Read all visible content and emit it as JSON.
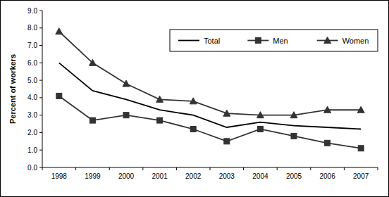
{
  "chart_data": {
    "type": "line",
    "y_label": "Percent of workers",
    "categories": [
      "1998",
      "1999",
      "2000",
      "2001",
      "2002",
      "2003",
      "2004",
      "2005",
      "2006",
      "2007"
    ],
    "series": [
      {
        "name": "Total",
        "color": "#000000",
        "marker": "none",
        "line_style": "solid",
        "values": [
          6.0,
          4.4,
          3.9,
          3.3,
          3.0,
          2.3,
          2.6,
          2.4,
          2.3,
          2.2
        ]
      },
      {
        "name": "Men",
        "color": "#333333",
        "marker": "square",
        "line_style": "solid",
        "values": [
          4.1,
          2.7,
          3.0,
          2.7,
          2.2,
          1.5,
          2.2,
          1.8,
          1.4,
          1.1
        ]
      },
      {
        "name": "Women",
        "color": "#333333",
        "marker": "triangle",
        "line_style": "solid",
        "values": [
          7.8,
          6.0,
          4.8,
          3.9,
          3.8,
          3.1,
          3.0,
          3.0,
          3.3,
          3.3
        ]
      }
    ],
    "ylim": [
      0,
      9
    ],
    "yticks": [
      {
        "value": 0,
        "label": "0.0"
      },
      {
        "value": 1,
        "label": "1.0"
      },
      {
        "value": 2,
        "label": "2.0"
      },
      {
        "value": 3,
        "label": "3.0"
      },
      {
        "value": 4,
        "label": "4.0"
      },
      {
        "value": 5,
        "label": "5.0"
      },
      {
        "value": 6,
        "label": "6.0"
      },
      {
        "value": 7,
        "label": "7.0"
      },
      {
        "value": 8,
        "label": "8.0"
      },
      {
        "value": 9,
        "label": "9.0"
      }
    ],
    "grid": false,
    "legend": "top-right"
  }
}
